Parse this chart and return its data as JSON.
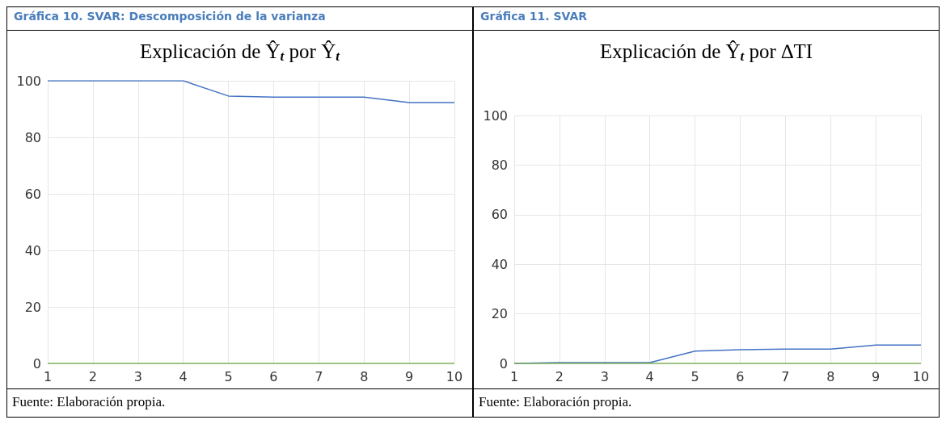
{
  "chart_data": [
    {
      "type": "line",
      "title": "Gráfica  10. SVAR: Descomposición de la varianza",
      "subtitle": "Explicación de Ŷ$_{t}$ por Ŷ$_{t}$",
      "categories": [
        "1",
        "2",
        "3",
        "4",
        "5",
        "6",
        "7",
        "8",
        "9",
        "10"
      ],
      "series": [
        {
          "color": "#4472c4",
          "values": [
            100,
            100,
            100,
            100,
            94.6,
            94.2,
            94.2,
            94.2,
            92.3,
            92.3
          ]
        },
        {
          "color": "#70ad47",
          "values": [
            0,
            0,
            0,
            0,
            0,
            0,
            0,
            0,
            0,
            0
          ]
        }
      ],
      "ylim": [
        0,
        100
      ],
      "yticks": [
        0,
        20,
        40,
        60,
        80,
        100
      ],
      "grid": true,
      "marker": "none",
      "line_style": "solid",
      "annotations": [
        "Fuente: Elaboración propia."
      ]
    },
    {
      "type": "line",
      "title": "Gráfica  11. SVAR",
      "subtitle": "Explicación de Ŷ$_{t}$ por ∆TI",
      "categories": [
        "1",
        "2",
        "3",
        "4",
        "5",
        "6",
        "7",
        "8",
        "9",
        "10"
      ],
      "series": [
        {
          "color": "#4472c4",
          "values": [
            0,
            0.3,
            0.3,
            0.3,
            5.0,
            5.5,
            5.8,
            5.8,
            7.4,
            7.4
          ]
        },
        {
          "color": "#70ad47",
          "values": [
            0,
            0,
            0,
            0,
            0,
            0,
            0,
            0,
            0,
            0
          ]
        }
      ],
      "ylim": [
        0,
        100
      ],
      "yticks": [
        0,
        20,
        40,
        60,
        80,
        100
      ],
      "grid": true,
      "marker": "none",
      "line_style": "solid",
      "annotations": [
        "Fuente: Elaboración propia."
      ]
    }
  ]
}
